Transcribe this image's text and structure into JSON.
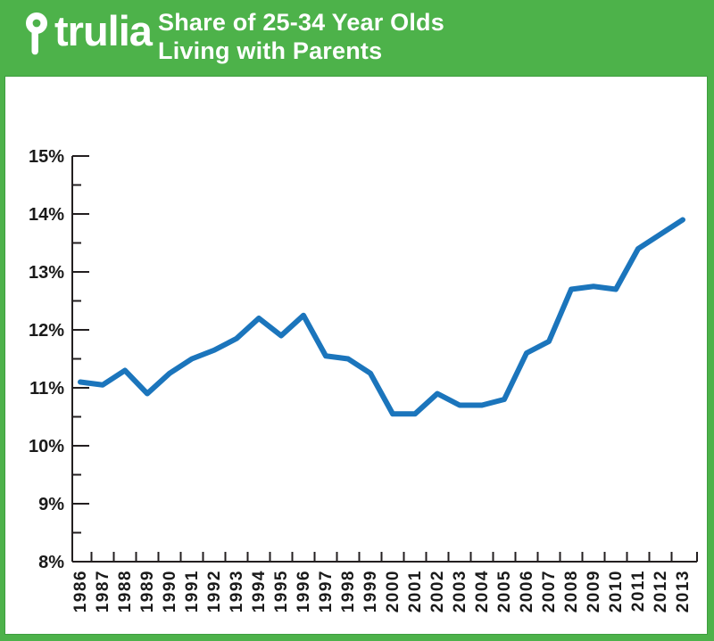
{
  "header": {
    "logo_text": "trulia",
    "logo_icon": "map-pin-icon",
    "title_line1": "Share of 25-34 Year Olds",
    "title_line2": "Living with Parents",
    "bg_color": "#4DB24A",
    "panel_border_color": "#3E9E3E",
    "text_color": "#FFFFFF"
  },
  "chart_data": {
    "type": "line",
    "title": "Share of 25-34 Year Olds Living with Parents",
    "x": [
      "1986",
      "1987",
      "1988",
      "1989",
      "1990",
      "1991",
      "1992",
      "1993",
      "1994",
      "1995",
      "1996",
      "1997",
      "1998",
      "1999",
      "2000",
      "2001",
      "2002",
      "2003",
      "2004",
      "2005",
      "2006",
      "2007",
      "2008",
      "2009",
      "2010",
      "2011",
      "2012",
      "2013"
    ],
    "values": [
      11.1,
      11.05,
      11.3,
      10.9,
      11.25,
      11.5,
      11.65,
      11.85,
      12.2,
      11.9,
      12.25,
      11.55,
      11.5,
      11.25,
      10.55,
      10.55,
      10.9,
      10.7,
      10.7,
      10.8,
      11.6,
      11.8,
      12.7,
      12.75,
      12.7,
      13.4,
      13.65,
      13.9
    ],
    "xlabel": "",
    "ylabel": "",
    "ylim": [
      8,
      15
    ],
    "ytick_step": 1,
    "ytick_labels_top_to_bottom": [
      "15%",
      "14%",
      "13%",
      "12%",
      "11%",
      "10%",
      "9%",
      "8%"
    ],
    "y_minor_ticks": true,
    "x_label_rotation_deg": -90,
    "grid": false,
    "legend": "none",
    "line_color": "#1B75BC",
    "axis_color": "#231F20",
    "label_color": "#1A1A1A"
  }
}
